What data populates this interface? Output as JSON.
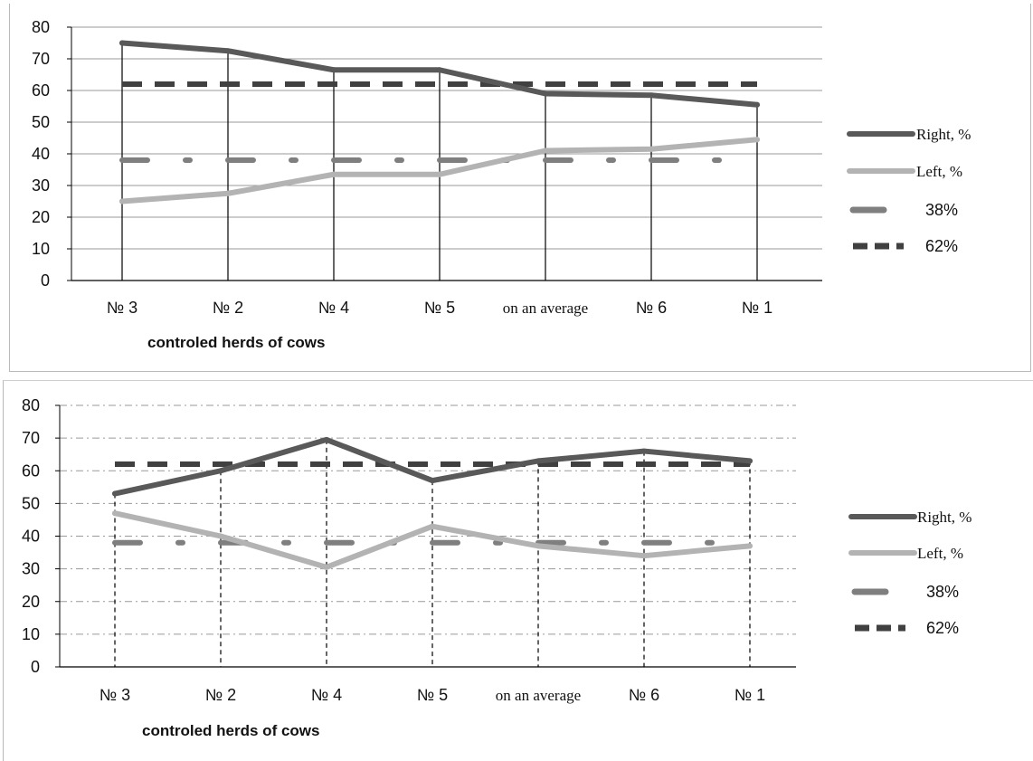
{
  "colors": {
    "right": "#595959",
    "left": "#b3b3b3",
    "ref38": "#7f7f7f",
    "ref62": "#404040",
    "grid": "#9a9a9a",
    "axis": "#000000"
  },
  "chart_data": [
    {
      "type": "line",
      "xlabel": "controled herds of cows",
      "ylabel": "",
      "ylim": [
        0,
        80
      ],
      "yticks": [
        "0",
        "10",
        "20",
        "30",
        "40",
        "50",
        "60",
        "70",
        "80"
      ],
      "grid": "solid horizontal",
      "drop_lines": "solid",
      "legend_position": "right",
      "categories": [
        "№ 3",
        "№ 2",
        "№ 4",
        "№ 5",
        "on an average",
        "№ 6",
        "№ 1"
      ],
      "series": [
        {
          "name": "Right, %",
          "values": [
            75,
            72.5,
            66.5,
            66.5,
            59,
            58.5,
            55.5
          ]
        },
        {
          "name": "Left, %",
          "values": [
            25,
            27.5,
            33.5,
            33.5,
            41,
            41.5,
            44.5
          ]
        },
        {
          "name": "38%",
          "values": [
            38,
            38,
            38,
            38,
            38,
            38,
            38
          ]
        },
        {
          "name": "62%",
          "values": [
            62,
            62,
            62,
            62,
            62,
            62,
            62
          ]
        }
      ]
    },
    {
      "type": "line",
      "xlabel": "controled herds of cows",
      "ylabel": "",
      "ylim": [
        0,
        80
      ],
      "yticks": [
        "0",
        "10",
        "20",
        "30",
        "40",
        "50",
        "60",
        "70",
        "80"
      ],
      "grid": "dash-dot horizontal",
      "drop_lines": "dashed",
      "legend_position": "right",
      "categories": [
        "№ 3",
        "№ 2",
        "№ 4",
        "№ 5",
        "on an average",
        "№ 6",
        "№ 1"
      ],
      "series": [
        {
          "name": "Right, %",
          "values": [
            53,
            60,
            69.5,
            57,
            63,
            66,
            63
          ]
        },
        {
          "name": "Left, %",
          "values": [
            47,
            40,
            30.5,
            43,
            37,
            34,
            37
          ]
        },
        {
          "name": "38%",
          "values": [
            38,
            38,
            38,
            38,
            38,
            38,
            38
          ]
        },
        {
          "name": "62%",
          "values": [
            62,
            62,
            62,
            62,
            62,
            62,
            62
          ]
        }
      ]
    }
  ]
}
